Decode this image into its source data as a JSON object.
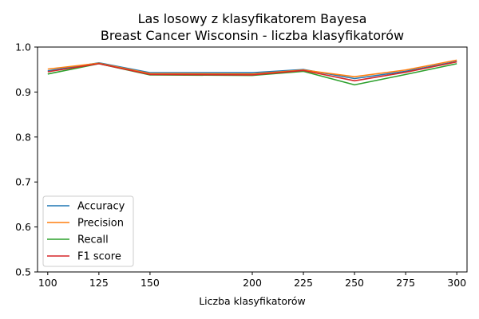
{
  "chart_data": {
    "type": "line",
    "title": "Las losowy z klasyfikatorem Bayesa",
    "subtitle": "Breast Cancer Wisconsin - liczba klasyfikatorów",
    "xlabel": "Liczba klasyfikatorów",
    "ylabel": "",
    "x": [
      100,
      125,
      150,
      200,
      225,
      250,
      275,
      300
    ],
    "xlim": [
      95,
      305
    ],
    "ylim": [
      0.5,
      1.0
    ],
    "xticks": [
      "100",
      "125",
      "150",
      "200",
      "225",
      "250",
      "275",
      "300"
    ],
    "yticks": [
      "0.5",
      "0.6",
      "0.7",
      "0.8",
      "0.9",
      "1.0"
    ],
    "grid": false,
    "legend_position": "lower-left",
    "series": [
      {
        "name": "Accuracy",
        "color": "#1f77b4",
        "values": [
          0.947,
          0.965,
          0.943,
          0.943,
          0.95,
          0.93,
          0.946,
          0.968
        ]
      },
      {
        "name": "Precision",
        "color": "#ff7f0e",
        "values": [
          0.951,
          0.964,
          0.941,
          0.94,
          0.949,
          0.934,
          0.949,
          0.971
        ]
      },
      {
        "name": "Recall",
        "color": "#2ca02c",
        "values": [
          0.94,
          0.963,
          0.938,
          0.937,
          0.946,
          0.916,
          0.939,
          0.963
        ]
      },
      {
        "name": "F1 score",
        "color": "#d62728",
        "values": [
          0.945,
          0.963,
          0.939,
          0.938,
          0.948,
          0.925,
          0.944,
          0.967
        ]
      }
    ]
  }
}
